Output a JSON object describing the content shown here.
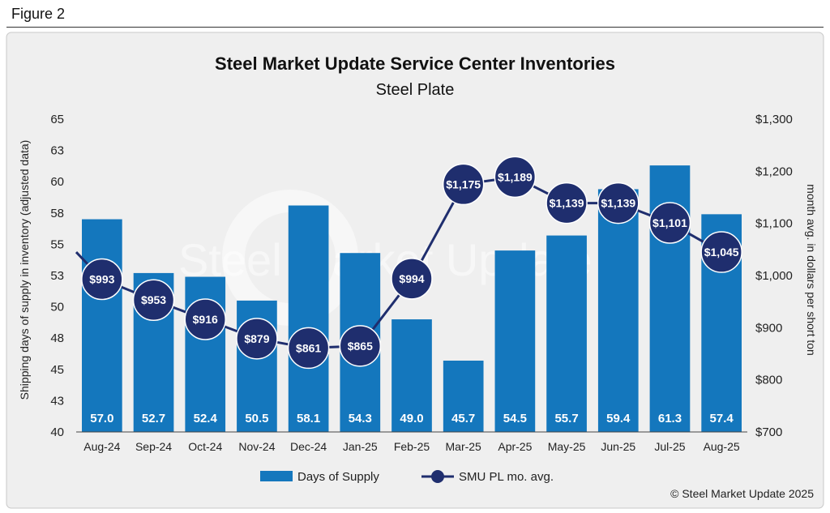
{
  "figure_label": "Figure 2",
  "copyright": "© Steel Market Update 2025",
  "watermark": "Steel Market Update",
  "colors": {
    "bar": "#1477bd",
    "line": "#1f2e6e",
    "panel": "#efefef",
    "border": "#c8c8c8"
  },
  "chart_data": {
    "type": "bar",
    "title": "Steel Market Update Service Center Inventories",
    "subtitle": "Steel Plate",
    "ylabel": "Shipping days of supply in inventory (adjusted data)",
    "y2label": "month avg. in dollars per short ton",
    "categories": [
      "Aug-24",
      "Sep-24",
      "Oct-24",
      "Nov-24",
      "Dec-24",
      "Jan-25",
      "Feb-25",
      "Mar-25",
      "Apr-25",
      "May-25",
      "Jun-25",
      "Jul-25",
      "Aug-25"
    ],
    "series": [
      {
        "name": "Days of Supply",
        "type": "bar",
        "axis": "left",
        "values": [
          57.0,
          52.7,
          52.4,
          50.5,
          58.1,
          54.3,
          49.0,
          45.7,
          54.5,
          55.7,
          59.4,
          61.3,
          57.4
        ],
        "labels": [
          "57.0",
          "52.7",
          "52.4",
          "50.5",
          "58.1",
          "54.3",
          "49.0",
          "45.7",
          "54.5",
          "55.7",
          "59.4",
          "61.3",
          "57.4"
        ]
      },
      {
        "name": "SMU PL mo. avg.",
        "type": "line",
        "axis": "right",
        "values": [
          993,
          953,
          916,
          879,
          861,
          865,
          994,
          1175,
          1189,
          1139,
          1139,
          1101,
          1045
        ],
        "labels": [
          "$993",
          "$953",
          "$916",
          "$879",
          "$861",
          "$865",
          "$994",
          "$1,175",
          "$1,189",
          "$1,139",
          "$1,139",
          "$1,101",
          "$1,045"
        ]
      }
    ],
    "ylim": [
      40,
      65
    ],
    "yticks": [
      "40",
      "43",
      "45",
      "48",
      "50",
      "53",
      "55",
      "58",
      "60",
      "63",
      "65"
    ],
    "y2lim": [
      700,
      1300
    ],
    "y2ticks": [
      "$700",
      "$800",
      "$900",
      "$1,000",
      "$1,100",
      "$1,200",
      "$1,300"
    ],
    "line_prev_value": 1045,
    "grid": false,
    "legend_position": "bottom-center"
  }
}
